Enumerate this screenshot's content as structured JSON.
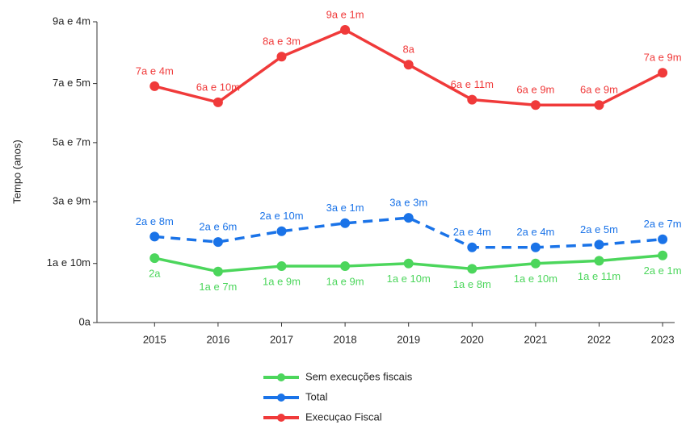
{
  "chart_data": {
    "type": "line",
    "y_label": "Tempo (anos)",
    "categories": [
      "2015",
      "2016",
      "2017",
      "2018",
      "2019",
      "2020",
      "2021",
      "2022",
      "2023"
    ],
    "ylim": [
      0,
      9.3333
    ],
    "yticks": [
      {
        "value": 0,
        "label": "0a"
      },
      {
        "value": 1.8333,
        "label": "1a e 10m"
      },
      {
        "value": 3.75,
        "label": "3a e 9m"
      },
      {
        "value": 5.5833,
        "label": "5a e 7m"
      },
      {
        "value": 7.4167,
        "label": "7a e 5m"
      },
      {
        "value": 9.3333,
        "label": "9a e 4m"
      }
    ],
    "series": [
      {
        "name": "Sem execuções fiscais",
        "color": "#4cd65c",
        "line_style": "solid",
        "values": [
          2,
          1.5833,
          1.75,
          1.75,
          1.8333,
          1.6667,
          1.8333,
          1.9167,
          2.0833
        ],
        "value_labels": [
          "2a",
          "1a e 7m",
          "1a e 9m",
          "1a e 9m",
          "1a e 10m",
          "1a e 8m",
          "1a e 10m",
          "1a e 11m",
          "2a e 1m"
        ]
      },
      {
        "name": "Total",
        "color": "#1a73e8",
        "line_style": "dashed",
        "values": [
          2.6667,
          2.5,
          2.8333,
          3.0833,
          3.25,
          2.3333,
          2.3333,
          2.4167,
          2.5833
        ],
        "value_labels": [
          "2a e 8m",
          "2a e 6m",
          "2a e 10m",
          "3a e 1m",
          "3a e 3m",
          "2a e 4m",
          "2a e 4m",
          "2a e 5m",
          "2a e 7m"
        ]
      },
      {
        "name": "Execuçao Fiscal",
        "color": "#f03a3a",
        "line_style": "solid",
        "values": [
          7.3333,
          6.8333,
          8.25,
          9.0833,
          8,
          6.9167,
          6.75,
          6.75,
          7.75
        ],
        "value_labels": [
          "7a e 4m",
          "6a e 10m",
          "8a e 3m",
          "9a e 1m",
          "8a",
          "6a e 11m",
          "6a e 9m",
          "6a e 9m",
          "7a e 9m"
        ]
      }
    ]
  }
}
